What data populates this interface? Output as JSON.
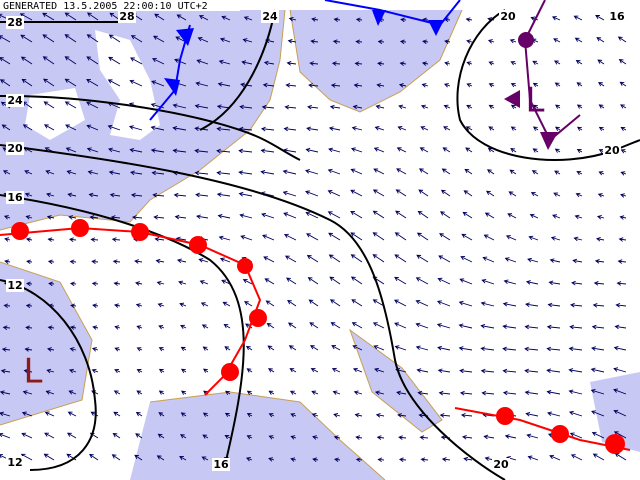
{
  "header": {
    "text": "GENERATED 13.5.2005 22:00:10 UTC+2"
  },
  "isobar_labels": [
    "28",
    "28",
    "24",
    "20",
    "16",
    "24",
    "20",
    "16",
    "12",
    "20",
    "12",
    "16",
    "20"
  ],
  "pressure_centers": [
    "L",
    "L"
  ]
}
